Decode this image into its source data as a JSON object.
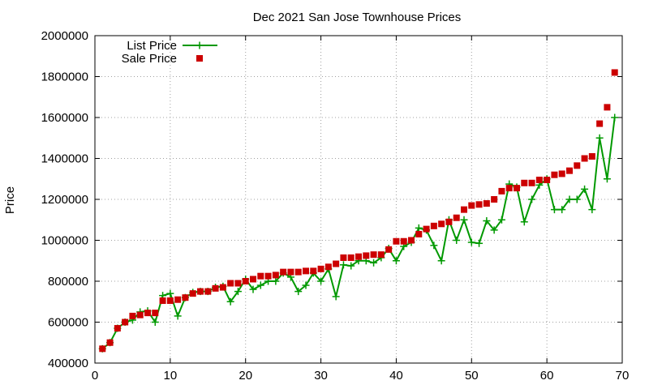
{
  "chart_data": {
    "type": "line",
    "title": "Dec 2021 San Jose Townhouse Prices",
    "xlabel": "",
    "ylabel": "Price",
    "xlim": [
      0,
      70
    ],
    "ylim": [
      400000,
      2000000
    ],
    "xticks": [
      0,
      10,
      20,
      30,
      40,
      50,
      60,
      70
    ],
    "yticks": [
      400000,
      600000,
      800000,
      1000000,
      1200000,
      1400000,
      1600000,
      1800000,
      2000000
    ],
    "grid": true,
    "legend_position": "top-left",
    "series": [
      {
        "name": "List Price",
        "style": "lines+plus",
        "color": "#009900",
        "x": [
          1,
          2,
          3,
          4,
          5,
          6,
          7,
          8,
          9,
          10,
          11,
          12,
          13,
          14,
          15,
          16,
          17,
          18,
          19,
          20,
          21,
          22,
          23,
          24,
          25,
          26,
          27,
          28,
          29,
          30,
          31,
          32,
          33,
          34,
          35,
          36,
          37,
          38,
          39,
          40,
          41,
          42,
          43,
          44,
          45,
          46,
          47,
          48,
          49,
          50,
          51,
          52,
          53,
          54,
          55,
          56,
          57,
          58,
          59,
          60,
          61,
          62,
          63,
          64,
          65,
          66,
          67,
          68,
          69
        ],
        "y": [
          470000,
          500000,
          570000,
          600000,
          610000,
          650000,
          655000,
          600000,
          730000,
          740000,
          630000,
          720000,
          745000,
          750000,
          750000,
          770000,
          775000,
          700000,
          750000,
          810000,
          760000,
          780000,
          800000,
          800000,
          840000,
          820000,
          750000,
          780000,
          840000,
          800000,
          860000,
          725000,
          880000,
          875000,
          900000,
          900000,
          890000,
          915000,
          960000,
          900000,
          970000,
          990000,
          1060000,
          1050000,
          975000,
          900000,
          1100000,
          1000000,
          1100000,
          990000,
          985000,
          1095000,
          1050000,
          1100000,
          1275000,
          1260000,
          1090000,
          1200000,
          1270000,
          1300000,
          1150000,
          1150000,
          1200000,
          1200000,
          1250000,
          1150000,
          1500000,
          1300000,
          1600000
        ]
      },
      {
        "name": "Sale Price",
        "style": "points",
        "color": "#cc0000",
        "x": [
          1,
          2,
          3,
          4,
          5,
          6,
          7,
          8,
          9,
          10,
          11,
          12,
          13,
          14,
          15,
          16,
          17,
          18,
          19,
          20,
          21,
          22,
          23,
          24,
          25,
          26,
          27,
          28,
          29,
          30,
          31,
          32,
          33,
          34,
          35,
          36,
          37,
          38,
          39,
          40,
          41,
          42,
          43,
          44,
          45,
          46,
          47,
          48,
          49,
          50,
          51,
          52,
          53,
          54,
          55,
          56,
          57,
          58,
          59,
          60,
          61,
          62,
          63,
          64,
          65,
          66,
          67,
          68,
          69
        ],
        "y": [
          470000,
          500000,
          570000,
          600000,
          630000,
          635000,
          645000,
          645000,
          705000,
          705000,
          710000,
          720000,
          740000,
          750000,
          750000,
          765000,
          770000,
          790000,
          790000,
          800000,
          810000,
          825000,
          825000,
          830000,
          845000,
          845000,
          845000,
          850000,
          850000,
          860000,
          870000,
          885000,
          915000,
          915000,
          920000,
          925000,
          930000,
          930000,
          955000,
          995000,
          995000,
          1000000,
          1030000,
          1055000,
          1070000,
          1080000,
          1090000,
          1110000,
          1150000,
          1170000,
          1175000,
          1180000,
          1200000,
          1240000,
          1255000,
          1255000,
          1280000,
          1280000,
          1295000,
          1295000,
          1320000,
          1325000,
          1340000,
          1365000,
          1400000,
          1410000,
          1570000,
          1650000,
          1820000
        ]
      }
    ]
  }
}
